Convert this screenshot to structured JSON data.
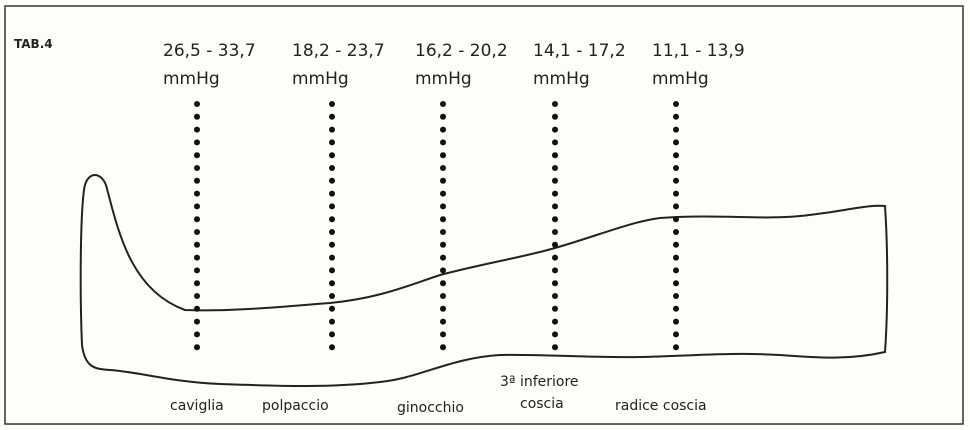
{
  "title": "TAB.4",
  "points": [
    {
      "range": "26,5 - 33,7",
      "unit": "mmHg",
      "label_lines": [
        "caviglia"
      ]
    },
    {
      "range": "18,2 - 23,7",
      "unit": "mmHg",
      "label_lines": [
        "polpaccio"
      ]
    },
    {
      "range": "16,2 - 20,2",
      "unit": "mmHg",
      "label_lines": [
        "ginocchio"
      ]
    },
    {
      "range": "14,1 - 17,2",
      "unit": "mmHg",
      "label_lines": [
        "3ª inferiore",
        "coscia"
      ]
    },
    {
      "range": "11,1 - 13,9",
      "unit": "mmHg",
      "label_lines": [
        "radice coscia"
      ]
    }
  ]
}
